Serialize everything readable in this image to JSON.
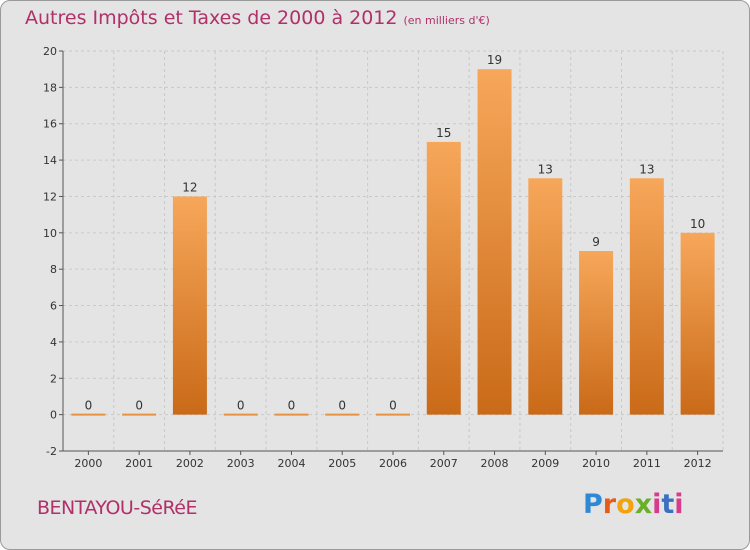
{
  "header": {
    "title": "Autres Impôts et Taxes de 2000 à 2012",
    "subtitle": "(en milliers d'€)"
  },
  "footer": {
    "town": "BENTAYOU-SéRéE",
    "brand": "Proxiti"
  },
  "chart_data": {
    "type": "bar",
    "categories": [
      "2000",
      "2001",
      "2002",
      "2003",
      "2004",
      "2005",
      "2006",
      "2007",
      "2008",
      "2009",
      "2010",
      "2011",
      "2012"
    ],
    "values": [
      0,
      0,
      12,
      0,
      0,
      0,
      0,
      15,
      19,
      13,
      9,
      13,
      10
    ],
    "data_labels": [
      "0",
      "0",
      "12",
      "0",
      "0",
      "0",
      "0",
      "15",
      "19",
      "13",
      "9",
      "13",
      "10"
    ],
    "yticks": [
      -2,
      0,
      2,
      4,
      6,
      8,
      10,
      12,
      14,
      16,
      18,
      20
    ],
    "ylim": [
      -2,
      20
    ],
    "grid": true,
    "colors": {
      "bar_top": "#f7a75a",
      "bar_bottom": "#c96a18",
      "background": "#e4e4e4",
      "grid": "#c9c9c9"
    }
  }
}
